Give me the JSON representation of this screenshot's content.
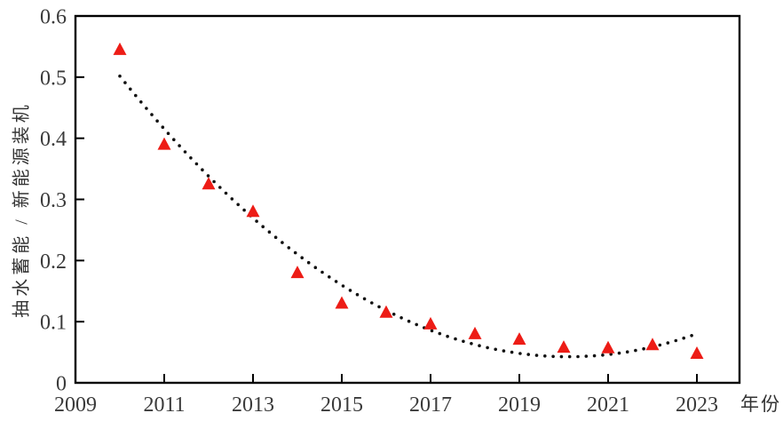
{
  "chart_data": {
    "type": "scatter",
    "title": "",
    "xlabel": "年份",
    "ylabel": "抽水蓄能 / 新能源装机",
    "x": [
      2010,
      2011,
      2012,
      2013,
      2014,
      2015,
      2016,
      2017,
      2018,
      2019,
      2020,
      2021,
      2022,
      2023
    ],
    "values": [
      0.545,
      0.39,
      0.325,
      0.28,
      0.18,
      0.13,
      0.115,
      0.096,
      0.08,
      0.071,
      0.058,
      0.057,
      0.062,
      0.048
    ],
    "xlim": [
      2009,
      2023.96
    ],
    "ylim": [
      0,
      0.6
    ],
    "x_ticks": [
      2009,
      2011,
      2013,
      2015,
      2017,
      2019,
      2021,
      2023
    ],
    "y_ticks": [
      0,
      0.1,
      0.2,
      0.3,
      0.4,
      0.5,
      0.6
    ],
    "y_tick_labels": [
      "0",
      "0.1",
      "0.2",
      "0.3",
      "0.4",
      "0.5",
      "0.6"
    ],
    "grid": false,
    "legend": "none",
    "frame": true,
    "axis_color": "#000000",
    "tick_label_color": "#3a3a3a",
    "marker": {
      "shape": "triangle-up",
      "color": "#ed1c16",
      "size": 15
    },
    "trendline": {
      "style": "dotted",
      "color": "#111111",
      "fit": "quadratic",
      "a": 0.004495,
      "b": -0.09084,
      "c": 0.5016,
      "t_origin": 2010,
      "t_domain": [
        0,
        12.9
      ],
      "dot_spacing": 9.3,
      "dot_radius": 1.8
    }
  }
}
